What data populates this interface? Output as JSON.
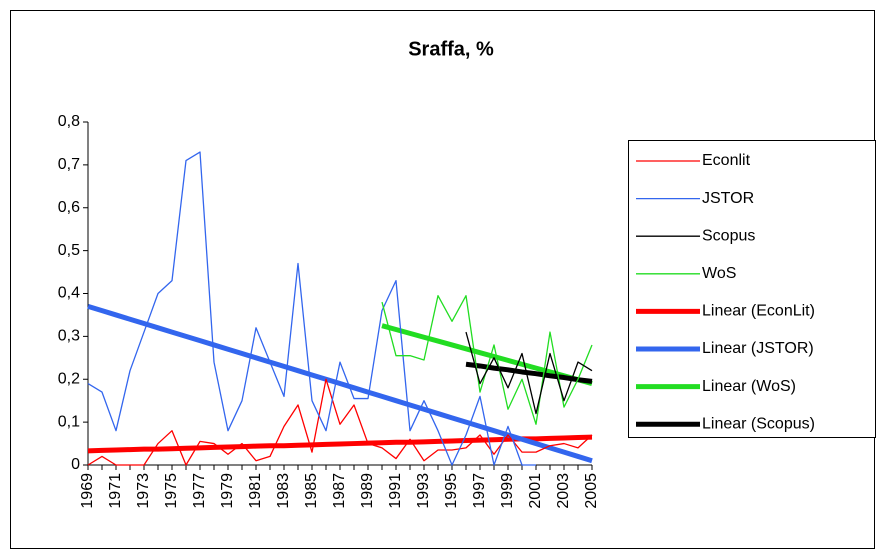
{
  "chart_data": {
    "type": "line",
    "title": "Sraffa, %",
    "categories": [
      "1969",
      null,
      "1971",
      null,
      "1973",
      null,
      "1975",
      null,
      "1977",
      null,
      "1979",
      null,
      "1981",
      null,
      "1983",
      null,
      "1985",
      null,
      "1987",
      null,
      "1989",
      null,
      "1991",
      null,
      "1993",
      null,
      "1995",
      null,
      "1997",
      null,
      "1999",
      null,
      "2001",
      null,
      "2003",
      null,
      "2005"
    ],
    "ylim": [
      0,
      0.8
    ],
    "yticks": [
      {
        "value": 0,
        "label": "0"
      },
      {
        "value": 0.1,
        "label": "0,1"
      },
      {
        "value": 0.2,
        "label": "0,2"
      },
      {
        "value": 0.3,
        "label": "0,3"
      },
      {
        "value": 0.4,
        "label": "0,4"
      },
      {
        "value": 0.5,
        "label": "0,5"
      },
      {
        "value": 0.6,
        "label": "0,6"
      },
      {
        "value": 0.7,
        "label": "0,7"
      },
      {
        "value": 0.8,
        "label": "0,8"
      }
    ],
    "grid": false,
    "legend": "right",
    "series": [
      {
        "name": "Econlit",
        "color": "#ff0000",
        "width": 1.3,
        "values": [
          0,
          0.02,
          0,
          0,
          0,
          0.05,
          0.08,
          0,
          0.055,
          0.05,
          0.025,
          0.05,
          0.01,
          0.02,
          0.09,
          0.14,
          0.03,
          0.2,
          0.095,
          0.14,
          0.05,
          0.04,
          0.015,
          0.06,
          0.01,
          0.035,
          0.035,
          0.04,
          0.07,
          0.025,
          0.07,
          0.03,
          0.03,
          0.045,
          0.05,
          0.04,
          0.07
        ]
      },
      {
        "name": "JSTOR",
        "color": "#3366ee",
        "width": 1.3,
        "values": [
          0.19,
          0.17,
          0.08,
          0.22,
          0.31,
          0.4,
          0.43,
          0.71,
          0.73,
          0.24,
          0.08,
          0.15,
          0.32,
          0.24,
          0.16,
          0.47,
          0.15,
          0.08,
          0.24,
          0.155,
          0.155,
          0.36,
          0.43,
          0.08,
          0.15,
          0.08,
          0,
          0.07,
          0.16,
          0,
          0.09,
          0,
          0,
          null,
          null,
          null,
          null
        ]
      },
      {
        "name": "Scopus",
        "color": "#000000",
        "width": 1.3,
        "values": [
          null,
          null,
          null,
          null,
          null,
          null,
          null,
          null,
          null,
          null,
          null,
          null,
          null,
          null,
          null,
          null,
          null,
          null,
          null,
          null,
          null,
          null,
          null,
          null,
          null,
          null,
          null,
          0.31,
          0.19,
          0.25,
          0.18,
          0.26,
          0.12,
          0.26,
          0.15,
          0.24,
          0.22
        ]
      },
      {
        "name": "WoS",
        "color": "#22dd22",
        "width": 1.3,
        "values": [
          null,
          null,
          null,
          null,
          null,
          null,
          null,
          null,
          null,
          null,
          null,
          null,
          null,
          null,
          null,
          null,
          null,
          null,
          null,
          null,
          null,
          0.38,
          0.255,
          0.255,
          0.245,
          0.395,
          0.335,
          0.395,
          0.17,
          0.28,
          0.13,
          0.2,
          0.095,
          0.31,
          0.135,
          0.2,
          0.28
        ]
      },
      {
        "name": "Linear (EconLit)",
        "color": "#ff0000",
        "width": 5,
        "values": [
          0.033,
          0.034,
          0.035,
          0.036,
          0.037,
          0.037,
          0.038,
          0.039,
          0.04,
          0.041,
          0.042,
          0.043,
          0.044,
          0.045,
          0.045,
          0.046,
          0.047,
          0.048,
          0.049,
          0.05,
          0.051,
          0.052,
          0.053,
          0.053,
          0.054,
          0.055,
          0.056,
          0.057,
          0.058,
          0.059,
          0.06,
          0.061,
          0.061,
          0.062,
          0.063,
          0.064,
          0.065
        ]
      },
      {
        "name": "Linear (JSTOR)",
        "color": "#3366ee",
        "width": 5,
        "values": [
          0.37,
          0.36,
          0.35,
          0.34,
          0.33,
          0.32,
          0.31,
          0.3,
          0.29,
          0.28,
          0.27,
          0.26,
          0.25,
          0.24,
          0.23,
          0.22,
          0.21,
          0.2,
          0.19,
          0.18,
          0.17,
          0.16,
          0.15,
          0.14,
          0.13,
          0.12,
          0.11,
          0.1,
          0.09,
          0.08,
          0.07,
          0.06,
          0.05,
          0.04,
          0.03,
          0.02,
          0.01
        ]
      },
      {
        "name": "Linear (WoS)",
        "color": "#22dd22",
        "width": 5,
        "values": [
          null,
          null,
          null,
          null,
          null,
          null,
          null,
          null,
          null,
          null,
          null,
          null,
          null,
          null,
          null,
          null,
          null,
          null,
          null,
          null,
          null,
          0.325,
          0.316,
          0.307,
          0.298,
          0.289,
          0.28,
          0.271,
          0.262,
          0.253,
          0.244,
          0.235,
          0.226,
          0.217,
          0.208,
          0.199,
          0.19
        ]
      },
      {
        "name": "Linear (Scopus)",
        "color": "#000000",
        "width": 5,
        "values": [
          null,
          null,
          null,
          null,
          null,
          null,
          null,
          null,
          null,
          null,
          null,
          null,
          null,
          null,
          null,
          null,
          null,
          null,
          null,
          null,
          null,
          null,
          null,
          null,
          null,
          null,
          null,
          0.235,
          0.231,
          0.226,
          0.222,
          0.217,
          0.213,
          0.208,
          0.204,
          0.199,
          0.195
        ]
      }
    ]
  }
}
